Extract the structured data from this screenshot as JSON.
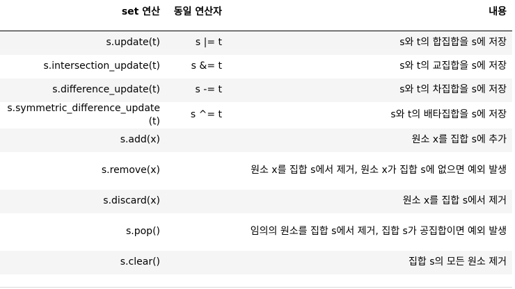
{
  "table": {
    "headers": [
      "set 연산",
      "동일 연산자",
      "내용"
    ],
    "rows": [
      {
        "method": "s.update(t)",
        "operator": "s |= t",
        "description": "s와 t의 합집합을 s에 저장"
      },
      {
        "method": "s.intersection_update(t)",
        "operator": "s &= t",
        "description": "s와 t의 교집합을 s에 저장"
      },
      {
        "method": "s.difference_update(t)",
        "operator": "s -= t",
        "description": "s와 t의 차집합을 s에 저장"
      },
      {
        "method": "s.symmetric_difference_update(t)",
        "operator": "s ^= t",
        "description": "s와 t의 배타집합을 s에 저장"
      },
      {
        "method": "s.add(x)",
        "operator": "",
        "description": "원소 x를 집합 s에 추가"
      },
      {
        "method": "s.remove(x)",
        "operator": "",
        "description": "원소 x를 집합 s에서 제거, 원소 x가 집합 s에 없으면 예외 발생"
      },
      {
        "method": "s.discard(x)",
        "operator": "",
        "description": "원소 x를 집합 s에서 제거"
      },
      {
        "method": "s.pop()",
        "operator": "",
        "description": "임의의 원소를 집합 s에서 제거, 집합 s가 공집합이면 예외 발생"
      },
      {
        "method": "s.clear()",
        "operator": "",
        "description": "집합 s의 모든 원소 제거"
      }
    ]
  }
}
